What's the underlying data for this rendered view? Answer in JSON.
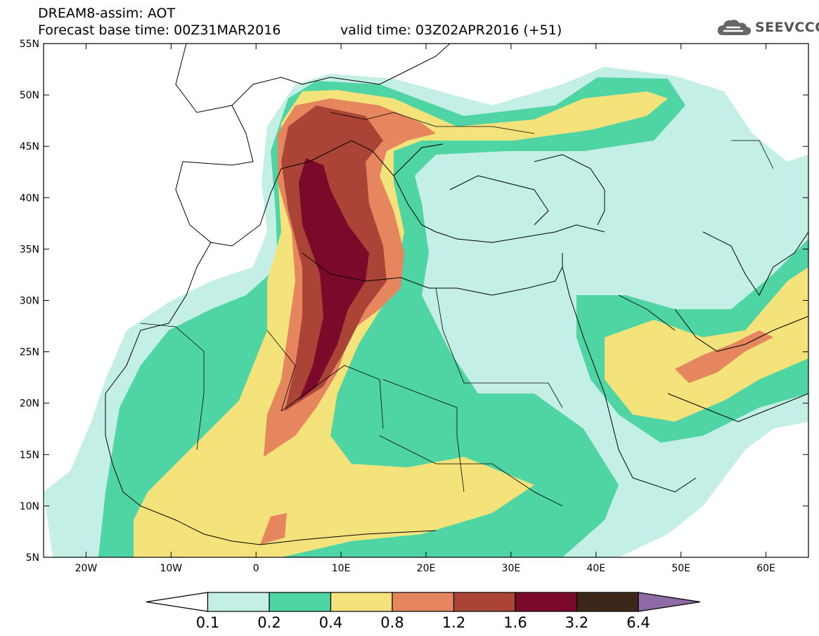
{
  "header": {
    "title": "DREAM8-assim: AOT",
    "base_time": "Forecast base time: 00Z31MAR2016",
    "valid_time": "valid time: 03Z02APR2016 (+51)"
  },
  "logo": {
    "text": "SEEVCCC",
    "icon": "cloud-icon"
  },
  "map": {
    "lon_range": [
      -25,
      65
    ],
    "lat_range": [
      5,
      55
    ],
    "lon_ticks": [
      {
        "lon": -20,
        "label": "20W"
      },
      {
        "lon": -10,
        "label": "10W"
      },
      {
        "lon": 0,
        "label": "0"
      },
      {
        "lon": 10,
        "label": "10E"
      },
      {
        "lon": 20,
        "label": "20E"
      },
      {
        "lon": 30,
        "label": "30E"
      },
      {
        "lon": 40,
        "label": "40E"
      },
      {
        "lon": 50,
        "label": "50E"
      },
      {
        "lon": 60,
        "label": "60E"
      }
    ],
    "lat_ticks": [
      {
        "lat": 55,
        "label": "55N"
      },
      {
        "lat": 50,
        "label": "50N"
      },
      {
        "lat": 45,
        "label": "45N"
      },
      {
        "lat": 40,
        "label": "40N"
      },
      {
        "lat": 35,
        "label": "35N"
      },
      {
        "lat": 30,
        "label": "30N"
      },
      {
        "lat": 25,
        "label": "25N"
      },
      {
        "lat": 20,
        "label": "20N"
      },
      {
        "lat": 15,
        "label": "15N"
      },
      {
        "lat": 10,
        "label": "10N"
      },
      {
        "lat": 5,
        "label": "5N"
      }
    ]
  },
  "colorbar": {
    "labels": [
      "0.1",
      "0.2",
      "0.4",
      "0.8",
      "1.2",
      "1.6",
      "3.2",
      "6.4"
    ],
    "colors": [
      "#ffffff",
      "#c4efe7",
      "#4fd4a4",
      "#f4e27a",
      "#e5865e",
      "#a94436",
      "#7b0a2a",
      "#3c2718",
      "#8e6ba6"
    ]
  }
}
